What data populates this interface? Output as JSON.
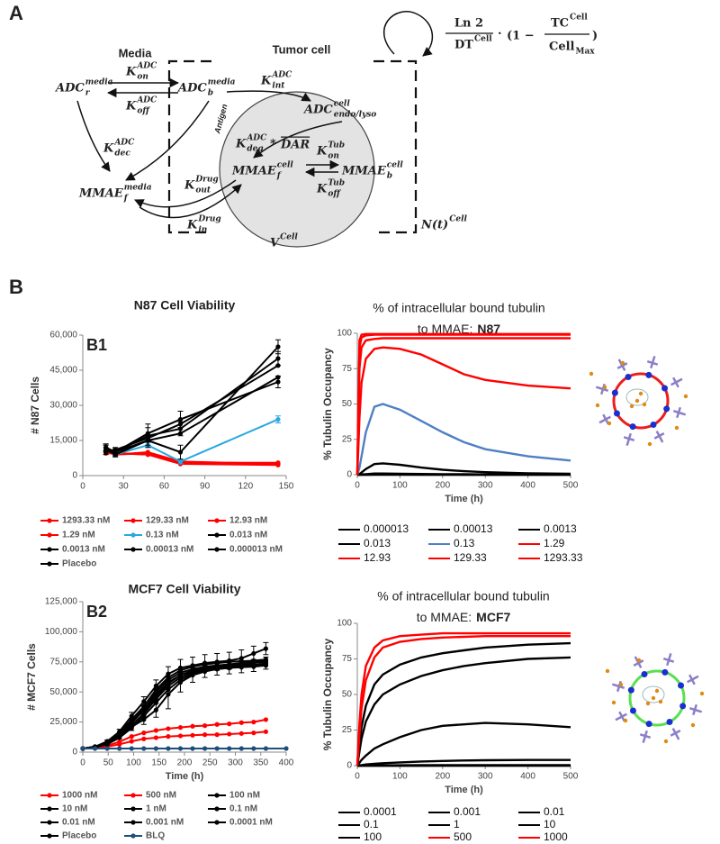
{
  "diagram": {
    "panel_label": "A",
    "media_label": "Media",
    "cell_label": "Tumor cell",
    "antigen": "Antigen",
    "symbols": [
      {
        "base": "ADC",
        "sub": "r",
        "sup": "media"
      },
      {
        "base": "K",
        "sub": "on",
        "sup": "ADC"
      },
      {
        "base": "K",
        "sub": "off",
        "sup": "ADC"
      },
      {
        "base": "ADC",
        "sub": "b",
        "sup": "media"
      },
      {
        "base": "K",
        "sub": "int",
        "sup": "ADC"
      },
      {
        "base": "ADC",
        "sub": "endo/lyso",
        "sup": "cell"
      },
      {
        "base": "K",
        "sub": "deg",
        "sup": "ADC"
      },
      {
        "base": "K",
        "sub": "dec",
        "sup": "ADC"
      },
      {
        "base": "MMAE",
        "sub": "f",
        "sup": "media"
      },
      {
        "base": "K",
        "sub": "on",
        "sup": "Tub"
      },
      {
        "base": "MMAE",
        "sub": "f",
        "sup": "cell"
      },
      {
        "base": "MMAE",
        "sub": "b",
        "sup": "cell"
      },
      {
        "base": "K",
        "sub": "off",
        "sup": "Tub"
      },
      {
        "base": "K",
        "sub": "out",
        "sup": "Drug"
      },
      {
        "base": "K",
        "sub": "in",
        "sup": "Drug"
      },
      {
        "base": "V",
        "sup": "Cell"
      },
      {
        "base": "N(t)",
        "sup": "Cell"
      }
    ],
    "deg_operator": "*",
    "deg_dar": "DAR",
    "formula": {
      "ln_num": "Ln 2",
      "ln_den": {
        "base": "DT",
        "sup": "Cell"
      },
      "dot": "·",
      "paren_open": "(1 −",
      "tc_num": {
        "base": "TC",
        "sup": "Cell"
      },
      "tc_den": {
        "base": "Cell",
        "sub": "Max"
      },
      "paren_close": ")"
    }
  },
  "panel_b_label": "B",
  "chart_data": [
    {
      "type": "line",
      "title": "N87 Cell Viability",
      "panel_label": "B1",
      "y_label": "# N87 Cells",
      "markers": true,
      "legend_columns": 3,
      "x": [
        17,
        24,
        48,
        72,
        144
      ],
      "xlim": [
        0,
        150
      ],
      "xticks": [
        0,
        30,
        60,
        90,
        120,
        150
      ],
      "ylim": [
        0,
        60000
      ],
      "yticks": [
        0,
        {
          "value": 15000,
          "label": "15,000"
        },
        {
          "value": 30000,
          "label": "30,000"
        },
        {
          "value": 45000,
          "label": "45,000"
        },
        {
          "value": 60000,
          "label": "60,000"
        }
      ],
      "series": [
        {
          "name": "1293.33 nM",
          "color": "#ff0000",
          "values": [
            10000,
            9500,
            9000,
            5000,
            5000
          ]
        },
        {
          "name": "129.33 nM",
          "color": "#ff0000",
          "values": [
            10500,
            9000,
            9500,
            5500,
            5500
          ]
        },
        {
          "name": "12.93 nM",
          "color": "#ff0000",
          "values": [
            10000,
            9000,
            10000,
            6000,
            5000
          ]
        },
        {
          "name": "1.29 nM",
          "color": "#ff0000",
          "values": [
            9500,
            9500,
            9000,
            5000,
            4500
          ]
        },
        {
          "name": "0.13 nM",
          "color": "#29a8e0",
          "values": [
            11000,
            9000,
            13000,
            6000,
            24000
          ],
          "errors": [
            1000,
            1000,
            1000,
            1000,
            1500
          ]
        },
        {
          "name": "0.013 nM",
          "color": "#000000",
          "values": [
            11000,
            10000,
            15000,
            10000,
            55000
          ],
          "errors": [
            2000,
            2000,
            2000,
            3000,
            3000
          ]
        },
        {
          "name": "0.0013 nM",
          "color": "#000000",
          "values": [
            12000,
            10000,
            17000,
            20000,
            50000
          ],
          "errors": [
            1500,
            1500,
            5000,
            3000,
            3000
          ]
        },
        {
          "name": "0.00013 nM",
          "color": "#000000",
          "values": [
            10000,
            11000,
            16000,
            22000,
            47000
          ]
        },
        {
          "name": "0.000013 nM",
          "color": "#000000",
          "values": [
            11000,
            9000,
            15000,
            18000,
            42000
          ]
        },
        {
          "name": "Placebo",
          "color": "#000000",
          "values": [
            12000,
            10000,
            18000,
            24000,
            40000
          ],
          "errors": [
            1500,
            1500,
            2500,
            3500,
            2500
          ]
        }
      ]
    },
    {
      "type": "line",
      "title": "% of intracellular bound tubulin",
      "subtitle": "to MMAE:",
      "subtitle_bold": "N87",
      "x_label": "Time (h)",
      "y_label": "% Tubulin Occupancy",
      "markers": false,
      "legend_columns": 3,
      "x": [
        0,
        5,
        10,
        20,
        40,
        60,
        100,
        150,
        200,
        250,
        300,
        400,
        500
      ],
      "xlim": [
        0,
        500
      ],
      "xticks": [
        0,
        100,
        200,
        300,
        400,
        500
      ],
      "ylim": [
        0,
        100
      ],
      "yticks": [
        0,
        25,
        50,
        75,
        100
      ],
      "series": [
        {
          "name": "0.000013",
          "color": "#000000",
          "values": [
            0,
            0,
            0,
            0,
            0,
            0,
            0,
            0,
            0,
            0,
            0,
            0,
            0
          ]
        },
        {
          "name": "0.00013",
          "color": "#000000",
          "values": [
            0,
            0,
            0,
            0,
            0.1,
            0.1,
            0.1,
            0.05,
            0.04,
            0.03,
            0.02,
            0.01,
            0.01
          ]
        },
        {
          "name": "0.0013",
          "color": "#000000",
          "values": [
            0,
            0,
            0.2,
            0.4,
            0.8,
            0.8,
            0.7,
            0.5,
            0.4,
            0.3,
            0.2,
            0.1,
            0.1
          ]
        },
        {
          "name": "0.013",
          "color": "#000000",
          "values": [
            0,
            0.5,
            1.5,
            4,
            7.5,
            8,
            7,
            5,
            3.5,
            2.5,
            1.8,
            1,
            0.7
          ]
        },
        {
          "name": "0.13",
          "color": "#4f7fc4",
          "values": [
            0,
            5,
            13,
            30,
            48,
            50,
            46,
            38,
            30,
            23,
            18,
            13,
            10
          ]
        },
        {
          "name": "1.29",
          "color": "#ff0000",
          "values": [
            0,
            40,
            65,
            82,
            89,
            90,
            89,
            85,
            78,
            71,
            67,
            63,
            61
          ]
        },
        {
          "name": "12.93",
          "color": "#ff0000",
          "values": [
            0,
            75,
            90,
            95,
            96,
            96.5,
            96.5,
            96.5,
            96.5,
            96.5,
            96.5,
            96.5,
            96.5
          ]
        },
        {
          "name": "129.33",
          "color": "#ff0000",
          "values": [
            0,
            90,
            97,
            98.5,
            99,
            99,
            99,
            99,
            99,
            99,
            99,
            99,
            99
          ]
        },
        {
          "name": "1293.33",
          "color": "#ff0000",
          "values": [
            0,
            95,
            99,
            99.5,
            99.5,
            99.5,
            99.5,
            99.5,
            99.5,
            99.5,
            99.5,
            99.5,
            99.5
          ]
        }
      ]
    },
    {
      "type": "line",
      "title": "MCF7 Cell Viability",
      "panel_label": "B2",
      "x_label": "Time (h)",
      "y_label": "# MCF7  Cells",
      "markers": true,
      "legend_columns": 3,
      "x": [
        0,
        24,
        48,
        72,
        96,
        120,
        144,
        168,
        192,
        216,
        240,
        264,
        288,
        312,
        336,
        360,
        400
      ],
      "xlim": [
        0,
        400
      ],
      "xticks": [
        0,
        50,
        100,
        150,
        200,
        250,
        300,
        350,
        400
      ],
      "ylim": [
        0,
        125000
      ],
      "yticks": [
        0,
        {
          "value": 25000,
          "label": "25,000"
        },
        {
          "value": 50000,
          "label": "50,000"
        },
        {
          "value": 75000,
          "label": "75,000"
        },
        {
          "value": 100000,
          "label": "100,000"
        },
        {
          "value": 125000,
          "label": "125,000"
        }
      ],
      "series": [
        {
          "name": "1000 nM",
          "color": "#ff0000",
          "values": [
            3000,
            3500,
            4500,
            6500,
            9000,
            11000,
            12000,
            13000,
            13500,
            14000,
            14500,
            14500,
            15000,
            15500,
            16000,
            17000,
            null
          ]
        },
        {
          "name": "500 nM",
          "color": "#ff0000",
          "values": [
            3000,
            4000,
            5500,
            8500,
            13000,
            16000,
            18000,
            19500,
            20500,
            21500,
            22000,
            23000,
            23500,
            24500,
            25000,
            27000,
            null
          ]
        },
        {
          "name": "100 nM",
          "color": "#000000",
          "values": [
            3000,
            4000,
            7000,
            13000,
            22000,
            32000,
            44000,
            55000,
            62000,
            66000,
            68000,
            69000,
            70000,
            70500,
            71000,
            72000,
            null
          ]
        },
        {
          "name": "10 nM",
          "color": "#000000",
          "values": [
            3000,
            4500,
            8000,
            15000,
            25000,
            36000,
            48000,
            58000,
            64000,
            67000,
            69000,
            70000,
            71000,
            72000,
            72500,
            73000,
            null
          ]
        },
        {
          "name": "1 nM",
          "color": "#000000",
          "values": [
            3000,
            4000,
            7500,
            14000,
            24000,
            35000,
            50000,
            60000,
            66000,
            69000,
            71000,
            72000,
            73000,
            74000,
            75000,
            76000,
            null
          ]
        },
        {
          "name": "0.1 nM",
          "color": "#000000",
          "values": [
            3000,
            4000,
            6500,
            12000,
            20000,
            30000,
            41000,
            52000,
            60000,
            65000,
            68000,
            70000,
            71000,
            71500,
            72000,
            72500,
            null
          ]
        },
        {
          "name": "0.01 nM",
          "color": "#000000",
          "values": [
            3000,
            4500,
            8500,
            16000,
            27000,
            38000,
            52000,
            62000,
            68000,
            71000,
            73000,
            74000,
            75000,
            75500,
            76000,
            77000,
            null
          ]
        },
        {
          "name": "0.001 nM",
          "color": "#000000",
          "values": [
            3000,
            4000,
            7000,
            13000,
            21000,
            27000,
            35000,
            48000,
            58000,
            64000,
            67000,
            69000,
            70000,
            71000,
            72000,
            74000,
            null
          ],
          "errors": [
            null,
            500,
            1000,
            2000,
            3000,
            4000,
            6000,
            12000,
            8000,
            6000,
            5000,
            5000,
            5000,
            5000,
            5000,
            5000,
            null
          ]
        },
        {
          "name": "0.0001 nM",
          "color": "#000000",
          "values": [
            3000,
            4500,
            8000,
            15000,
            26000,
            34000,
            46000,
            57000,
            64000,
            68000,
            70000,
            71000,
            72000,
            73000,
            74000,
            75000,
            null
          ]
        },
        {
          "name": "Placebo",
          "color": "#000000",
          "values": [
            3000,
            4500,
            9000,
            17000,
            30000,
            42000,
            55000,
            65000,
            70000,
            72000,
            74000,
            75000,
            76000,
            78000,
            82000,
            86000,
            null
          ],
          "errors": [
            null,
            500,
            1000,
            2000,
            3000,
            4000,
            5000,
            6000,
            7000,
            7000,
            7000,
            7000,
            7000,
            7000,
            6000,
            5000,
            null
          ]
        },
        {
          "name": "BLQ",
          "color": "#1f4e79",
          "values": [
            3000,
            3000,
            3000,
            3000,
            3000,
            3000,
            3000,
            3000,
            3000,
            3000,
            3000,
            3000,
            3000,
            3000,
            3000,
            3000,
            3000
          ]
        }
      ]
    },
    {
      "type": "line",
      "title": "% of intracellular bound tubulin",
      "subtitle": "to MMAE:",
      "subtitle_bold": "MCF7",
      "x_label": "Time (h)",
      "y_label": "% Tubulin Occupancy",
      "markers": false,
      "legend_columns": 3,
      "x": [
        0,
        5,
        10,
        20,
        40,
        60,
        100,
        150,
        200,
        250,
        300,
        400,
        500
      ],
      "xlim": [
        0,
        500
      ],
      "xticks": [
        0,
        100,
        200,
        300,
        400,
        500
      ],
      "ylim": [
        0,
        100
      ],
      "yticks": [
        0,
        25,
        50,
        75,
        100
      ],
      "series": [
        {
          "name": "0.0001",
          "color": "#000000",
          "values": [
            0,
            0,
            0,
            0,
            0,
            0,
            0,
            0,
            0,
            0,
            0,
            0,
            0
          ]
        },
        {
          "name": "0.001",
          "color": "#000000",
          "values": [
            0,
            0,
            0,
            0,
            0.02,
            0.02,
            0.03,
            0.03,
            0.04,
            0.04,
            0.04,
            0.04,
            0.04
          ]
        },
        {
          "name": "0.01",
          "color": "#000000",
          "values": [
            0,
            0,
            0.05,
            0.1,
            0.15,
            0.2,
            0.25,
            0.3,
            0.35,
            0.4,
            0.4,
            0.4,
            0.4
          ]
        },
        {
          "name": "0.1",
          "color": "#000000",
          "values": [
            0,
            0.2,
            0.4,
            0.8,
            1.3,
            1.7,
            2.3,
            2.9,
            3.3,
            3.6,
            3.8,
            4,
            4
          ]
        },
        {
          "name": "1",
          "color": "#000000",
          "values": [
            0,
            2,
            4,
            7,
            12,
            15,
            20,
            25,
            28,
            29,
            30,
            29,
            27
          ]
        },
        {
          "name": "10",
          "color": "#000000",
          "values": [
            0,
            10,
            19,
            31,
            43,
            50,
            57,
            63,
            67,
            70,
            72,
            75,
            76
          ]
        },
        {
          "name": "100",
          "color": "#000000",
          "values": [
            0,
            15,
            27,
            42,
            57,
            64,
            71,
            76,
            79,
            81,
            83,
            85,
            86
          ]
        },
        {
          "name": "500",
          "color": "#ff0000",
          "values": [
            0,
            22,
            40,
            60,
            76,
            83,
            87,
            89,
            90,
            90.5,
            91,
            91,
            91
          ]
        },
        {
          "name": "1000",
          "color": "#ff0000",
          "values": [
            0,
            30,
            50,
            70,
            83,
            88,
            91,
            92,
            93,
            93,
            93,
            93,
            93
          ]
        }
      ]
    }
  ]
}
